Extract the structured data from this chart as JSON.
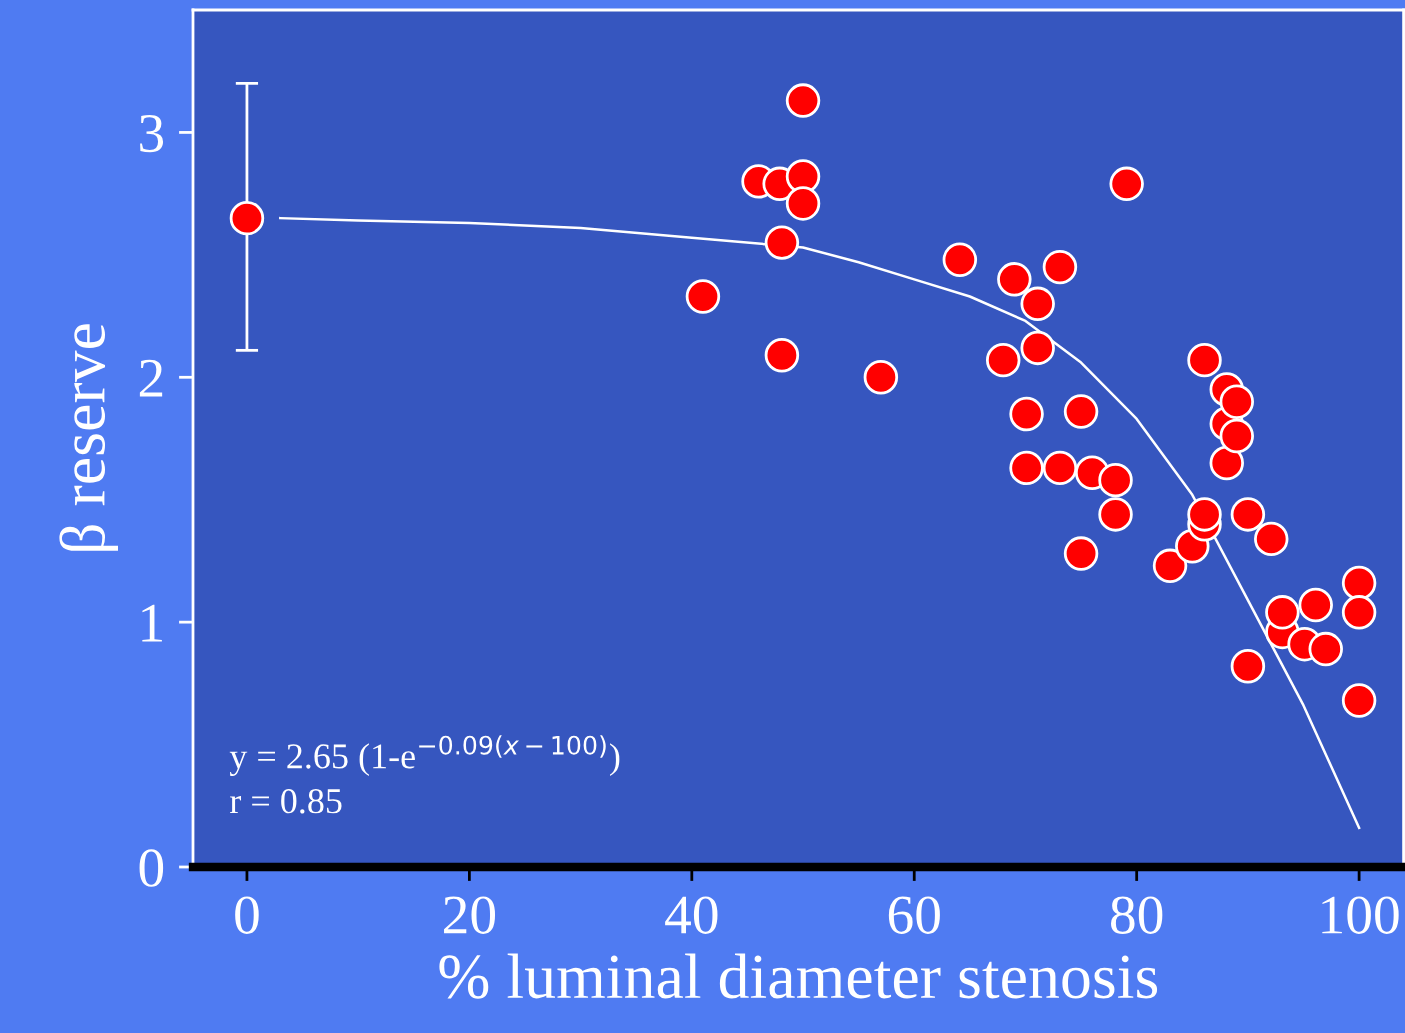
{
  "chart_data": {
    "type": "scatter",
    "xlabel": "% luminal diameter stenosis",
    "ylabel": "β reserve",
    "xlim": [
      -4.85,
      104
    ],
    "ylim": [
      0,
      3.5
    ],
    "xticks": [
      0,
      20,
      40,
      60,
      80,
      100
    ],
    "yticks": [
      0,
      1,
      2,
      3
    ],
    "grid": false,
    "legend": false,
    "marker": "circle",
    "series": [
      {
        "color": "#ff0000",
        "x": [
          0,
          41,
          46,
          47.9,
          50,
          50,
          50,
          48.1,
          48.1,
          57,
          64.1,
          69,
          73.1,
          71.1,
          68,
          71.1,
          70.1,
          75,
          70.1,
          73.1,
          76,
          78.1,
          78.1,
          75,
          79.1,
          83,
          85,
          86.1,
          86.1,
          86.1,
          88.1,
          88.1,
          88.1,
          89,
          89,
          90,
          92.1,
          93.1,
          93.1,
          90,
          95.1,
          96.1,
          97,
          100,
          100,
          100
        ],
        "values": [
          2.65,
          2.33,
          2.8,
          2.79,
          3.13,
          2.82,
          2.71,
          2.55,
          2.09,
          2.0,
          2.48,
          2.4,
          2.45,
          2.3,
          2.07,
          2.12,
          1.85,
          1.86,
          1.63,
          1.63,
          1.61,
          1.58,
          1.44,
          1.28,
          2.79,
          1.23,
          1.31,
          1.4,
          1.44,
          2.07,
          1.95,
          1.81,
          1.65,
          1.9,
          1.76,
          1.44,
          1.34,
          0.96,
          1.04,
          0.82,
          0.91,
          1.07,
          0.89,
          1.16,
          1.04,
          0.68
        ],
        "errors": [
          [
            2.11,
            3.2
          ],
          null,
          null,
          null,
          null,
          null,
          null,
          null,
          null,
          null,
          null,
          null,
          null,
          null,
          null,
          null,
          null,
          null,
          null,
          null,
          null,
          null,
          null,
          null,
          null,
          null,
          null,
          null,
          null,
          null,
          null,
          null,
          null,
          null,
          null,
          null,
          null,
          null,
          null,
          null,
          null,
          null,
          null,
          null,
          null,
          null
        ]
      },
      {
        "type": "line",
        "color": "#ffffff",
        "marker": "none",
        "line_style": "solid",
        "x": [
          3,
          10,
          20,
          30,
          40,
          50,
          55,
          60,
          65,
          70,
          75,
          80,
          85,
          90,
          95,
          100
        ],
        "values": [
          2.65,
          2.64,
          2.63,
          2.61,
          2.57,
          2.53,
          2.47,
          2.4,
          2.33,
          2.23,
          2.06,
          1.83,
          1.52,
          1.09,
          0.66,
          0.16
        ]
      }
    ],
    "annotations": [
      "y = 2.65 (1-e$^{−0.09(x−100)}$)",
      "r = 0.85"
    ]
  }
}
